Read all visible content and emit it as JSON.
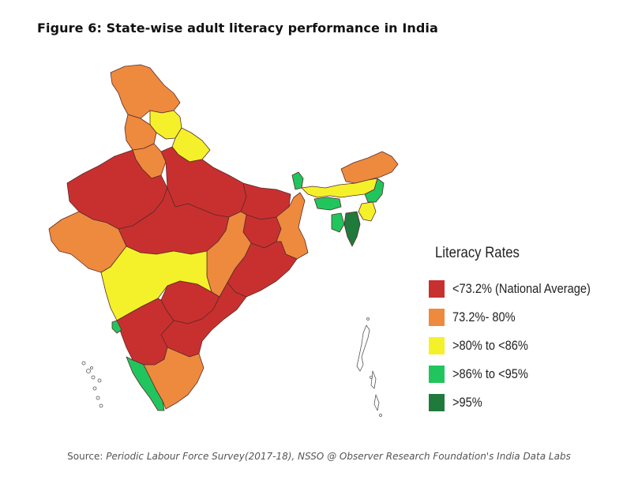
{
  "title": "Figure 6: State-wise adult literacy performance in India",
  "legend": {
    "title": "Literacy Rates",
    "items": [
      {
        "label": "<73.2% (National Average)",
        "color": "#c8302f"
      },
      {
        "label": "73.2%- 80%",
        "color": "#ee8a3e"
      },
      {
        "label": ">80% to <86%",
        "color": "#f4f12b"
      },
      {
        "label": ">86% to <95%",
        "color": "#21c55d"
      },
      {
        "label": ">95%",
        "color": "#1f7a3c"
      }
    ]
  },
  "source": {
    "prefix": "Source: ",
    "body": "Periodic Labour Force Survey(2017-18), NSSO @ Observer Research Foundation's India Data Labs"
  }
}
